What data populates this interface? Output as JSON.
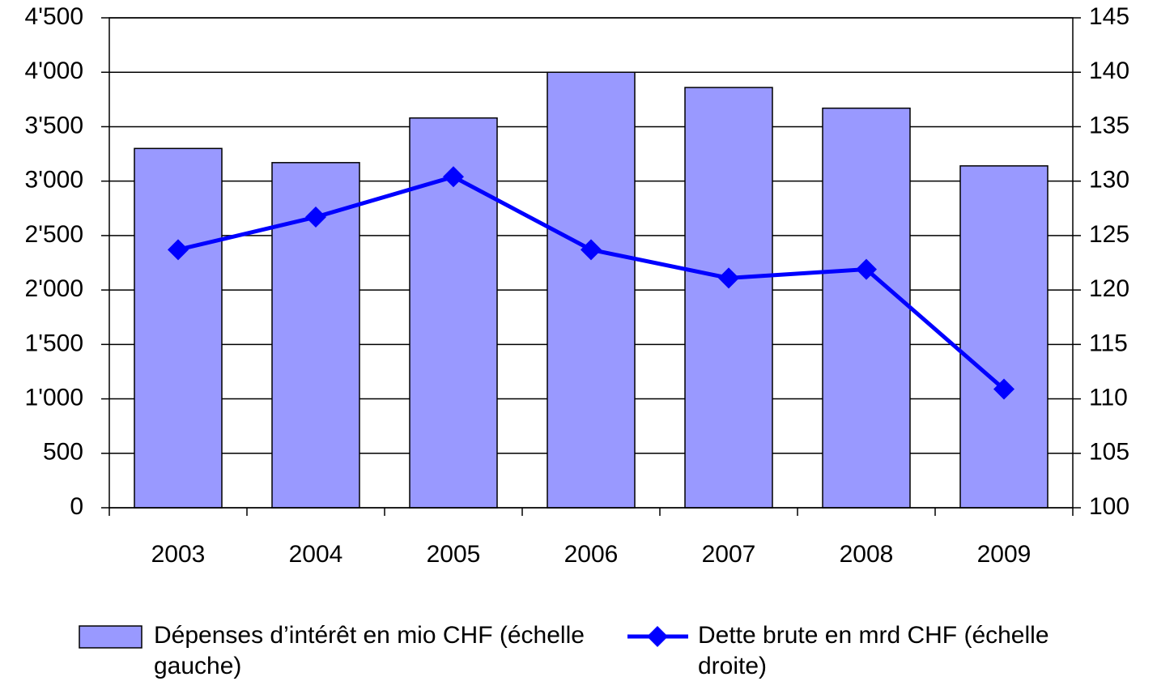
{
  "chart_data": {
    "type": "bar_line",
    "categories": [
      "2003",
      "2004",
      "2005",
      "2006",
      "2007",
      "2008",
      "2009"
    ],
    "series": [
      {
        "name": "Dépenses d’intérêt en mio CHF (échelle gauche)",
        "type": "bar",
        "color": "#9999ff",
        "values": [
          3300,
          3170,
          3580,
          4000,
          3860,
          3670,
          3140
        ]
      },
      {
        "name": "Dette brute en mrd CHF (échelle droite)",
        "type": "line",
        "axis": "y2",
        "color": "#0000ff",
        "values": [
          123.7,
          126.7,
          130.4,
          123.7,
          121.1,
          121.9,
          110.9
        ]
      }
    ],
    "ylim": [
      0,
      4500
    ],
    "yticks": [
      0,
      500,
      {
        "value": 1000,
        "label": "1'000"
      },
      {
        "value": 1500,
        "label": "1'500"
      },
      {
        "value": 2000,
        "label": "2'000"
      },
      {
        "value": 2500,
        "label": "2'500"
      },
      {
        "value": 3000,
        "label": "3'000"
      },
      {
        "value": 3500,
        "label": "3'500"
      },
      {
        "value": 4000,
        "label": "4'000"
      },
      {
        "value": 4500,
        "label": "4'500"
      }
    ],
    "y2lim": [
      100,
      145
    ],
    "y2ticks": [
      100,
      105,
      110,
      115,
      120,
      125,
      130,
      135,
      140,
      145
    ],
    "grid": true,
    "legend": "bottom"
  }
}
